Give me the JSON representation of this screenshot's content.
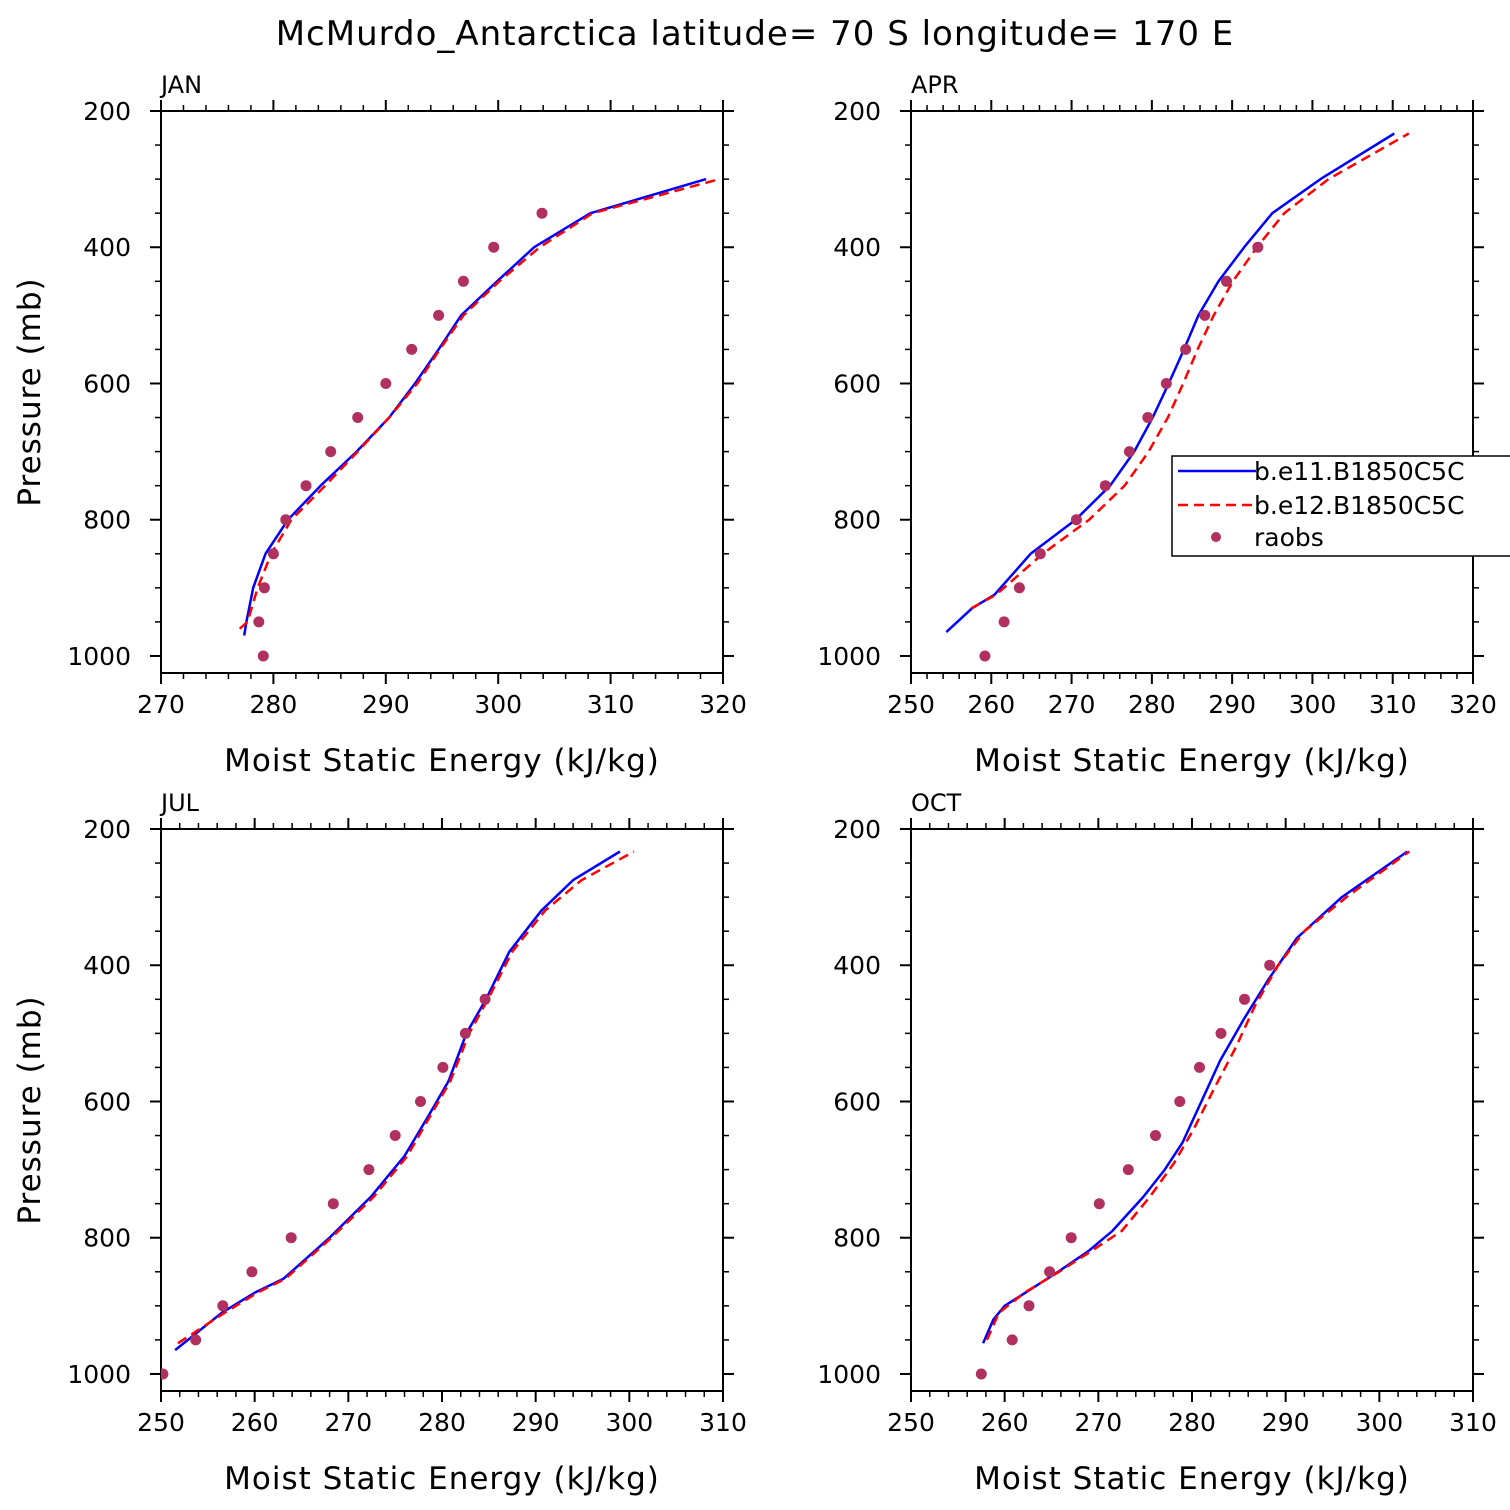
{
  "title": "McMurdo_Antarctica  latitude= 70 S longitude= 170 E",
  "legend": {
    "entries": [
      "b.e11.B1850C5C",
      "b.e12.B1850C5C",
      "raobs"
    ]
  },
  "colors": {
    "series1": "#0000ff",
    "series2": "#ff0000",
    "obs": "#b03060"
  },
  "chart_data": [
    {
      "type": "line",
      "panel": "JAN",
      "xlabel": "Moist Static Energy (kJ/kg)",
      "ylabel": "Pressure (mb)",
      "xlim": [
        270,
        320
      ],
      "ylim": [
        1025,
        200
      ],
      "xticks": [
        270,
        280,
        290,
        300,
        310,
        320
      ],
      "yticks": [
        200,
        400,
        600,
        800,
        1000
      ],
      "series": [
        {
          "name": "b.e11.B1850C5C",
          "x": [
            277.4,
            277.6,
            278.2,
            279.3,
            281.3,
            284.2,
            287.4,
            290.3,
            292.6,
            294.7,
            296.7,
            299.9,
            303.2,
            308.2,
            318.5
          ],
          "y": [
            970,
            950,
            900,
            850,
            800,
            750,
            700,
            650,
            600,
            550,
            500,
            450,
            400,
            350,
            300
          ]
        },
        {
          "name": "b.e12.B1850C5C",
          "x": [
            277.0,
            277.7,
            278.6,
            279.8,
            281.6,
            284.6,
            287.5,
            290.3,
            292.8,
            294.8,
            296.9,
            300.1,
            303.7,
            308.4,
            319.7
          ],
          "y": [
            960,
            950,
            900,
            850,
            800,
            750,
            700,
            650,
            600,
            550,
            500,
            450,
            400,
            350,
            300
          ]
        },
        {
          "name": "raobs",
          "x": [
            279.1,
            278.7,
            279.2,
            280.0,
            281.1,
            282.9,
            285.1,
            287.5,
            290.0,
            292.3,
            294.7,
            296.9,
            299.6,
            303.9
          ],
          "y": [
            1000,
            950,
            900,
            850,
            800,
            750,
            700,
            650,
            600,
            550,
            500,
            450,
            400,
            350
          ]
        }
      ]
    },
    {
      "type": "line",
      "panel": "APR",
      "xlabel": "Moist Static Energy (kJ/kg)",
      "ylabel": "",
      "xlim": [
        250,
        320
      ],
      "ylim": [
        1025,
        200
      ],
      "xticks": [
        250,
        260,
        270,
        280,
        290,
        300,
        310,
        320
      ],
      "yticks": [
        200,
        400,
        600,
        800,
        1000
      ],
      "series": [
        {
          "name": "b.e11.B1850C5C",
          "x": [
            254.4,
            257.6,
            260.4,
            264.9,
            270.5,
            274.8,
            277.8,
            280.1,
            282.1,
            284.0,
            285.8,
            288.3,
            291.5,
            295.0,
            301.0,
            310.2
          ],
          "y": [
            965,
            930,
            910,
            850,
            800,
            750,
            700,
            650,
            600,
            550,
            500,
            450,
            400,
            350,
            300,
            233
          ]
        },
        {
          "name": "b.e12.B1850C5C",
          "x": [
            257.5,
            260.6,
            266.4,
            272.2,
            276.6,
            279.6,
            282.0,
            283.9,
            285.7,
            287.7,
            290.1,
            293.1,
            296.5,
            302.0,
            312.0
          ],
          "y": [
            930,
            910,
            850,
            800,
            750,
            700,
            650,
            600,
            550,
            500,
            450,
            400,
            350,
            300,
            233
          ]
        },
        {
          "name": "raobs",
          "x": [
            259.2,
            261.6,
            263.5,
            266.1,
            270.6,
            274.2,
            277.2,
            279.5,
            281.8,
            284.2,
            286.6,
            289.3,
            293.2
          ],
          "y": [
            1000,
            950,
            900,
            850,
            800,
            750,
            700,
            650,
            600,
            550,
            500,
            450,
            400
          ]
        }
      ]
    },
    {
      "type": "line",
      "panel": "JUL",
      "xlabel": "Moist Static Energy (kJ/kg)",
      "ylabel": "Pressure (mb)",
      "xlim": [
        250,
        310
      ],
      "ylim": [
        1025,
        200
      ],
      "xticks": [
        250,
        260,
        270,
        280,
        290,
        300,
        310
      ],
      "yticks": [
        200,
        400,
        600,
        800,
        1000
      ],
      "series": [
        {
          "name": "b.e11.B1850C5C",
          "x": [
            251.5,
            256.5,
            260.1,
            263.1,
            268.0,
            272.4,
            276.0,
            278.6,
            280.7,
            282.6,
            284.7,
            287.2,
            290.6,
            294.0,
            299.0
          ],
          "y": [
            965,
            910,
            880,
            860,
            800,
            740,
            680,
            620,
            570,
            500,
            450,
            380,
            320,
            275,
            233
          ]
        },
        {
          "name": "b.e12.B1850C5C",
          "x": [
            251.8,
            256.8,
            260.4,
            263.3,
            268.2,
            272.7,
            276.3,
            278.8,
            280.9,
            282.9,
            284.9,
            287.5,
            291.0,
            294.9,
            300.5
          ],
          "y": [
            955,
            910,
            880,
            860,
            800,
            740,
            680,
            620,
            570,
            500,
            450,
            380,
            320,
            275,
            233
          ]
        },
        {
          "name": "raobs",
          "x": [
            250.2,
            253.7,
            256.6,
            259.7,
            263.9,
            268.4,
            272.2,
            275.0,
            277.7,
            280.1,
            282.5,
            284.6
          ],
          "y": [
            1000,
            950,
            900,
            850,
            800,
            750,
            700,
            650,
            600,
            550,
            500,
            450
          ]
        }
      ]
    },
    {
      "type": "line",
      "panel": "OCT",
      "xlabel": "Moist Static Energy (kJ/kg)",
      "ylabel": "",
      "xlim": [
        250,
        310
      ],
      "ylim": [
        1025,
        200
      ],
      "xticks": [
        250,
        260,
        270,
        280,
        290,
        300,
        310
      ],
      "yticks": [
        200,
        400,
        600,
        800,
        1000
      ],
      "series": [
        {
          "name": "b.e11.B1850C5C",
          "x": [
            257.7,
            258.8,
            260.0,
            262.3,
            265.7,
            268.9,
            271.5,
            274.8,
            277.1,
            279.0,
            281.0,
            283.0,
            285.5,
            288.2,
            291.2,
            296.0,
            303.0
          ],
          "y": [
            955,
            920,
            900,
            880,
            850,
            820,
            790,
            740,
            700,
            660,
            600,
            540,
            480,
            420,
            360,
            300,
            233
          ]
        },
        {
          "name": "b.e12.B1850C5C",
          "x": [
            258.1,
            259.4,
            262.2,
            265.8,
            269.2,
            272.5,
            275.5,
            278.1,
            280.2,
            282.4,
            284.7,
            286.7,
            289.2,
            292.0,
            296.5,
            303.2
          ],
          "y": [
            950,
            910,
            880,
            850,
            820,
            790,
            740,
            690,
            640,
            580,
            520,
            460,
            400,
            350,
            300,
            233
          ]
        },
        {
          "name": "raobs",
          "x": [
            257.5,
            260.8,
            262.6,
            264.8,
            267.1,
            270.1,
            273.2,
            276.1,
            278.7,
            280.8,
            283.1,
            285.6,
            288.3
          ],
          "y": [
            1000,
            950,
            900,
            850,
            800,
            750,
            700,
            650,
            600,
            550,
            500,
            450,
            400
          ]
        }
      ]
    }
  ]
}
